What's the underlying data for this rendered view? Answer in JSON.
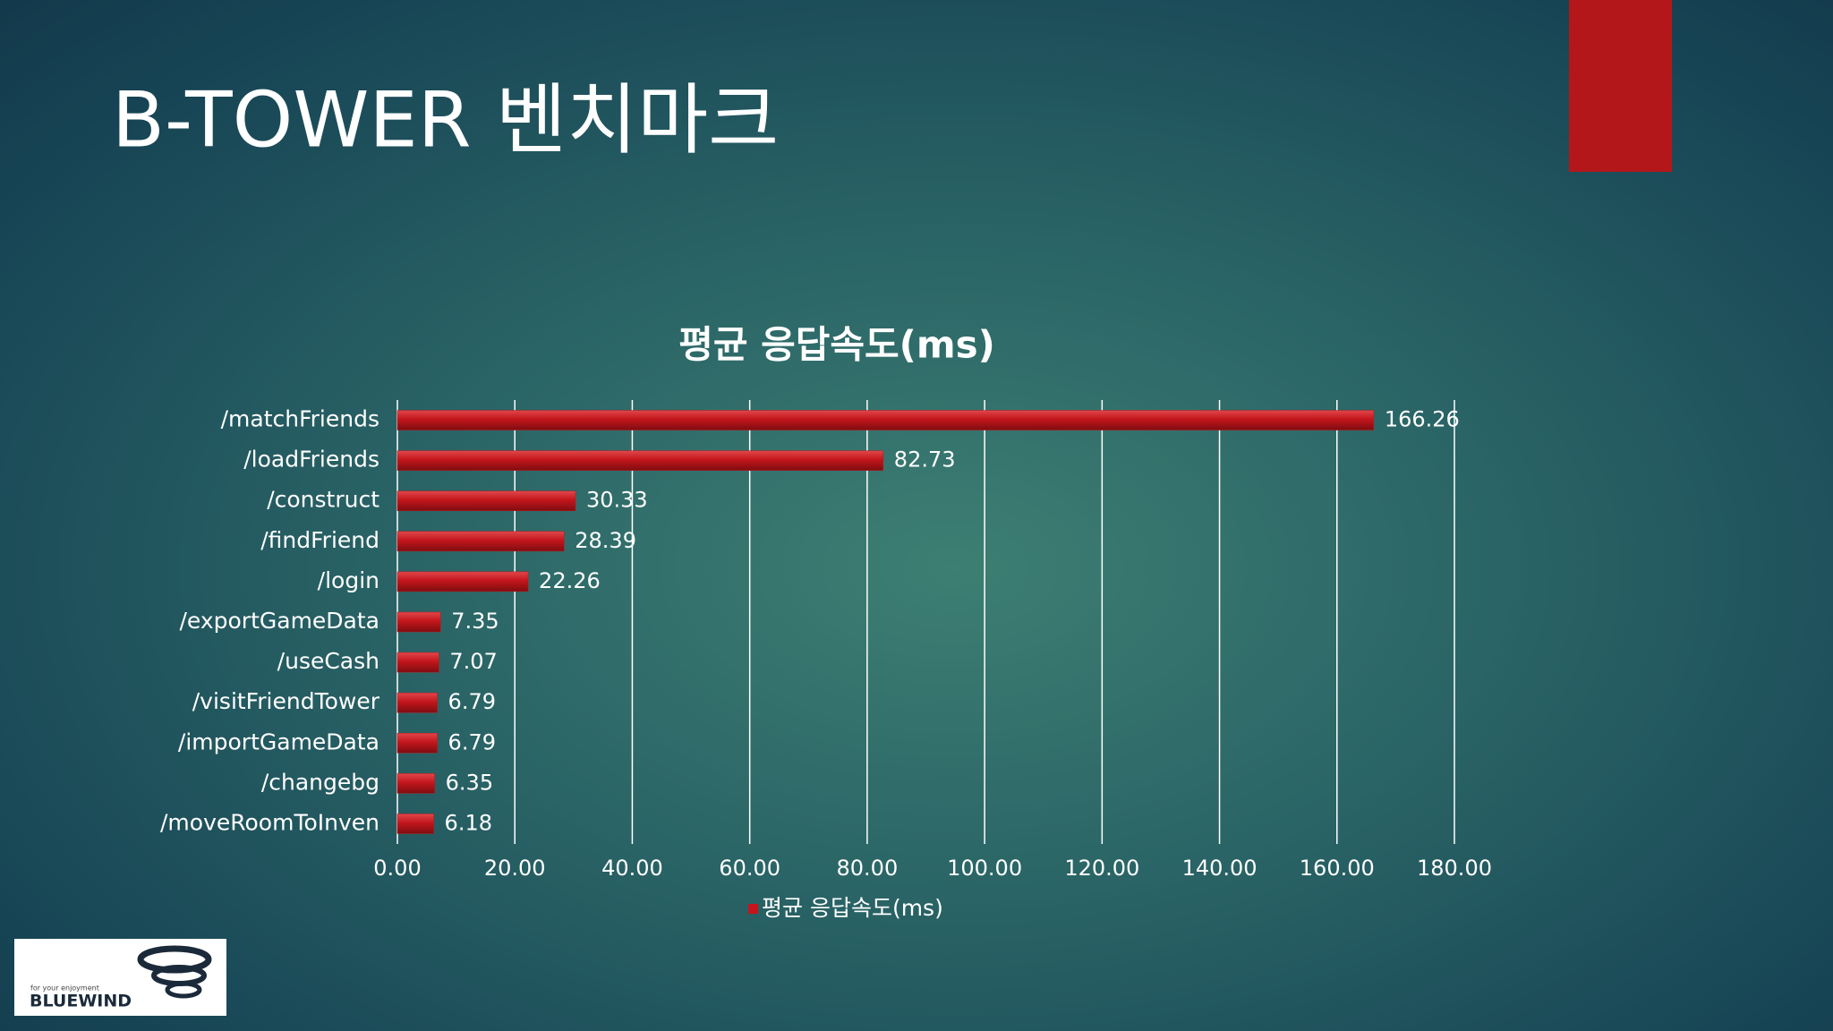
{
  "slide_title": "B-TOWER 벤치마크",
  "logo": {
    "tagline": "for your enjoyment",
    "name": "BLUEWIND"
  },
  "chart_data": {
    "type": "bar",
    "orientation": "horizontal",
    "title": "평균 응답속도(ms)",
    "categories": [
      "/matchFriends",
      "/loadFriends",
      "/construct",
      "/findFriend",
      "/login",
      "/exportGameData",
      "/useCash",
      "/visitFriendTower",
      "/importGameData",
      "/changebg",
      "/moveRoomToInven"
    ],
    "series": [
      {
        "name": "평균 응답속도(ms)",
        "color": "#c3161c",
        "values": [
          166.26,
          82.73,
          30.33,
          28.39,
          22.26,
          7.35,
          7.07,
          6.79,
          6.79,
          6.35,
          6.18
        ]
      }
    ],
    "xlim": [
      0,
      180
    ],
    "xticks": [
      {
        "value": 0,
        "label": "0.00"
      },
      {
        "value": 20,
        "label": "20.00"
      },
      {
        "value": 40,
        "label": "40.00"
      },
      {
        "value": 60,
        "label": "60.00"
      },
      {
        "value": 80,
        "label": "80.00"
      },
      {
        "value": 100,
        "label": "100.00"
      },
      {
        "value": 120,
        "label": "120.00"
      },
      {
        "value": 140,
        "label": "140.00"
      },
      {
        "value": 160,
        "label": "160.00"
      },
      {
        "value": 180,
        "label": "180.00"
      }
    ],
    "grid": true,
    "legend": "bottom"
  }
}
